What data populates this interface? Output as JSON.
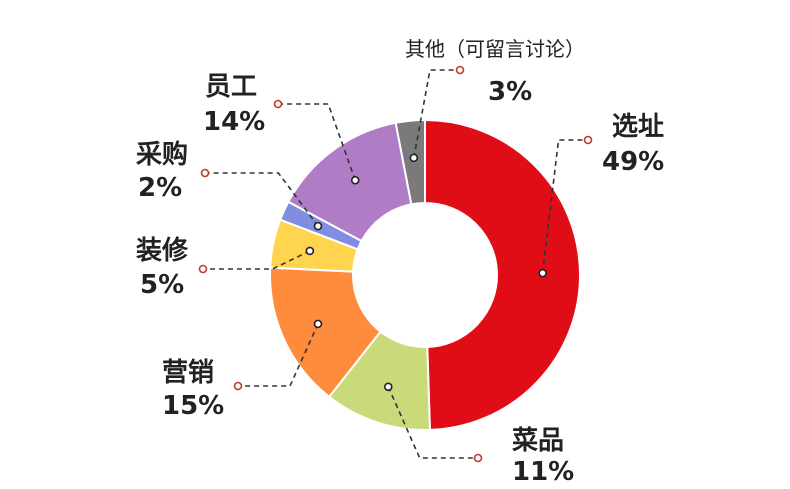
{
  "chart_data": {
    "type": "pie",
    "donut": true,
    "slices": [
      {
        "label": "选址",
        "value": 49,
        "value_label": "49%",
        "color": "#e00d17"
      },
      {
        "label": "菜品",
        "value": 11,
        "value_label": "11%",
        "color": "#c8da7a"
      },
      {
        "label": "营销",
        "value": 15,
        "value_label": "15%",
        "color": "#ff8c3c"
      },
      {
        "label": "装修",
        "value": 5,
        "value_label": "5%",
        "color": "#ffd54f"
      },
      {
        "label": "采购",
        "value": 2,
        "value_label": "2%",
        "color": "#7f8ee0"
      },
      {
        "label": "员工",
        "value": 14,
        "value_label": "14%",
        "color": "#b07cc6"
      },
      {
        "label": "其他（可留言讨论）",
        "value": 3,
        "value_label": "3%",
        "color": "#7a7a7a"
      }
    ]
  }
}
